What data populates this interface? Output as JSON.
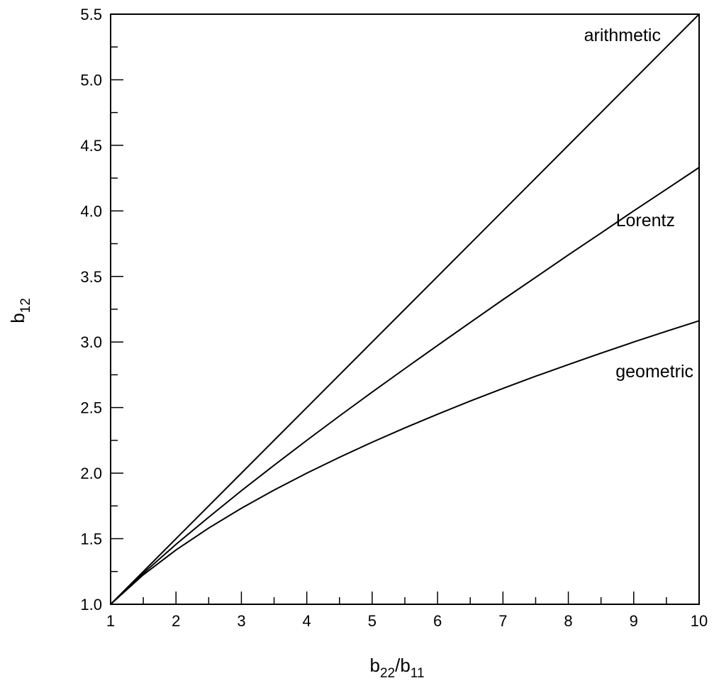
{
  "chart_data": {
    "type": "line",
    "title": "",
    "xlabel": {
      "base": "b",
      "sub1": "22",
      "sep": "/b",
      "sub2": "11"
    },
    "ylabel": {
      "base": "b",
      "sub": "12"
    },
    "xlim": [
      1,
      10
    ],
    "ylim": [
      1.0,
      5.5
    ],
    "x_major_ticks": [
      "1",
      "2",
      "3",
      "4",
      "5",
      "6",
      "7",
      "8",
      "9",
      "10"
    ],
    "y_major_ticks": [
      "1.0",
      "1.5",
      "2.0",
      "2.5",
      "3.0",
      "3.5",
      "4.0",
      "4.5",
      "5.0",
      "5.5"
    ],
    "grid": false,
    "x": [
      1,
      1.5,
      2,
      2.5,
      3,
      3.5,
      4,
      4.5,
      5,
      5.5,
      6,
      6.5,
      7,
      7.5,
      8,
      8.5,
      9,
      9.5,
      10
    ],
    "series": [
      {
        "name": "arithmetic",
        "values": [
          1.0,
          1.25,
          1.5,
          1.75,
          2.0,
          2.25,
          2.5,
          2.75,
          3.0,
          3.25,
          3.5,
          3.75,
          4.0,
          4.25,
          4.5,
          4.75,
          5.0,
          5.25,
          5.5
        ]
      },
      {
        "name": "Lorentz",
        "values": [
          1.0,
          1.237,
          1.457,
          1.664,
          1.866,
          2.06,
          2.25,
          2.436,
          2.618,
          2.797,
          2.974,
          3.149,
          3.323,
          3.493,
          3.664,
          3.831,
          4.0,
          4.165,
          4.331
        ]
      },
      {
        "name": "geometric",
        "values": [
          1.0,
          1.225,
          1.414,
          1.581,
          1.732,
          1.871,
          2.0,
          2.121,
          2.236,
          2.345,
          2.449,
          2.55,
          2.646,
          2.739,
          2.828,
          2.915,
          3.0,
          3.082,
          3.162
        ]
      }
    ]
  }
}
